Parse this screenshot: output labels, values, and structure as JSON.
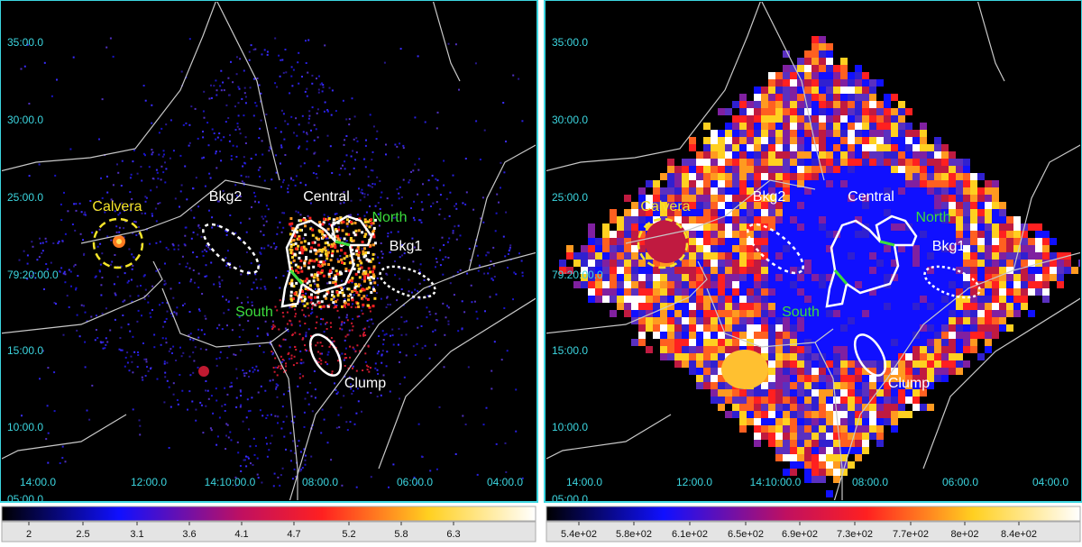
{
  "panels": [
    {
      "y_labels": [
        "35:00.0",
        "30:00.0",
        "25:00.0",
        "79:20:00.0",
        "15:00.0",
        "10:00.0",
        "05:00.0"
      ],
      "x_labels": [
        "14:00.0",
        "12:00.0",
        "14:10:00.0",
        "08:00.0",
        "06:00.0",
        "04:00.0"
      ],
      "regions": [
        "Calvera",
        "Bkg2",
        "Central",
        "North",
        "Bkg1",
        "South",
        "Clump"
      ],
      "colorbar": [
        "2",
        "2.5",
        "3.1",
        "3.6",
        "4.1",
        "4.7",
        "5.2",
        "5.8",
        "6.3"
      ]
    },
    {
      "y_labels": [
        "35:00.0",
        "30:00.0",
        "25:00.0",
        "79:20:00.0",
        "15:00.0",
        "10:00.0",
        "05:00.0"
      ],
      "x_labels": [
        "14:00.0",
        "12:00.0",
        "14:10:00.0",
        "08:00.0",
        "06:00.0",
        "04:00.0"
      ],
      "regions": [
        "Calvera",
        "Bkg2",
        "Central",
        "North",
        "Bkg1",
        "South",
        "Clump"
      ],
      "colorbar": [
        "5.4e+02",
        "5.8e+02",
        "6.1e+02",
        "6.5e+02",
        "6.9e+02",
        "7.3e+02",
        "7.7e+02",
        "8e+02",
        "8.4e+02"
      ]
    }
  ]
}
